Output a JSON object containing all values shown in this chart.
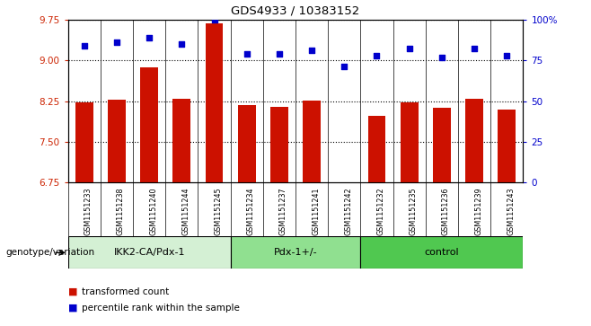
{
  "title": "GDS4933 / 10383152",
  "samples": [
    "GSM1151233",
    "GSM1151238",
    "GSM1151240",
    "GSM1151244",
    "GSM1151245",
    "GSM1151234",
    "GSM1151237",
    "GSM1151241",
    "GSM1151242",
    "GSM1151232",
    "GSM1151235",
    "GSM1151236",
    "GSM1151239",
    "GSM1151243"
  ],
  "bar_values": [
    8.22,
    8.28,
    8.87,
    8.3,
    9.68,
    8.18,
    8.15,
    8.26,
    6.68,
    7.98,
    8.22,
    8.13,
    8.3,
    8.1
  ],
  "dot_values": [
    84,
    86,
    89,
    85,
    100,
    79,
    79,
    81,
    71,
    78,
    82,
    77,
    82,
    78
  ],
  "groups": [
    {
      "label": "IKK2-CA/Pdx-1",
      "start": 0,
      "end": 5,
      "color": "#d4f0d4"
    },
    {
      "label": "Pdx-1+/-",
      "start": 5,
      "end": 9,
      "color": "#90e090"
    },
    {
      "label": "control",
      "start": 9,
      "end": 14,
      "color": "#50c850"
    }
  ],
  "ylim": [
    6.75,
    9.75
  ],
  "yticks_left": [
    6.75,
    7.5,
    8.25,
    9.0,
    9.75
  ],
  "y2lim": [
    0,
    100
  ],
  "y2ticks": [
    0,
    25,
    50,
    75,
    100
  ],
  "bar_color": "#cc1100",
  "dot_color": "#0000cc",
  "bg_color": "#e8e8e8",
  "label_color_left": "#cc2200",
  "label_color_right": "#0000cc",
  "genotype_label": "genotype/variation",
  "legend_bar": "transformed count",
  "legend_dot": "percentile rank within the sample"
}
